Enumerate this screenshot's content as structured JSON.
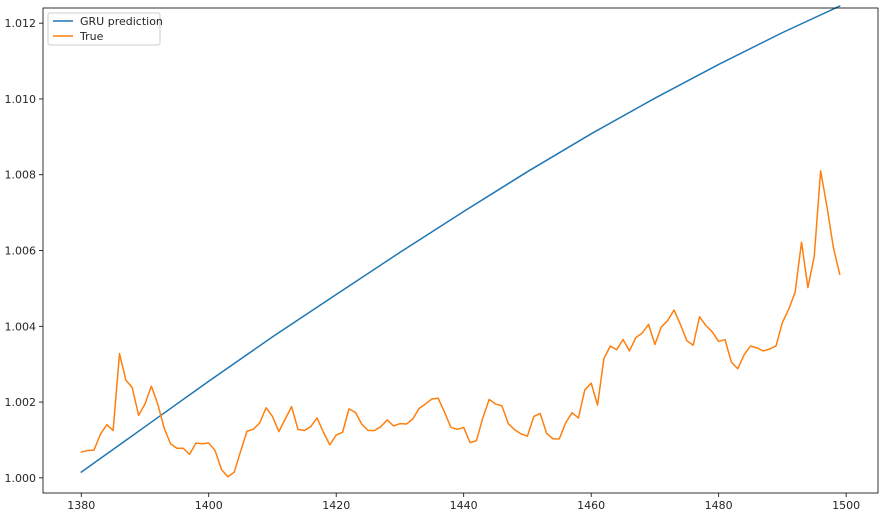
{
  "chart_data": {
    "type": "line",
    "title": "",
    "xlabel": "",
    "ylabel": "",
    "xlim": [
      1374,
      1505
    ],
    "ylim": [
      0.9996,
      1.0124
    ],
    "xticks": [
      1380,
      1400,
      1420,
      1440,
      1460,
      1480,
      1500
    ],
    "yticks": [
      1.0,
      1.002,
      1.004,
      1.006,
      1.008,
      1.01,
      1.012
    ],
    "xtick_labels": [
      "1380",
      "1400",
      "1420",
      "1440",
      "1460",
      "1480",
      "1500"
    ],
    "ytick_labels": [
      "1.000",
      "1.002",
      "1.004",
      "1.006",
      "1.008",
      "1.010",
      "1.012"
    ],
    "grid": false,
    "legend_position": "top-left",
    "series": [
      {
        "name": "GRU prediction",
        "color": "#1f77b4",
        "x": [
          1380,
          1390,
          1400,
          1410,
          1420,
          1430,
          1440,
          1450,
          1460,
          1470,
          1480,
          1490,
          1499
        ],
        "y": [
          1.00015,
          1.00135,
          1.00255,
          1.00372,
          1.00484,
          1.00595,
          1.00703,
          1.00808,
          1.00908,
          1.01002,
          1.01091,
          1.01175,
          1.01245
        ]
      },
      {
        "name": "True",
        "color": "#ff7f0e",
        "x": [
          1380,
          1381,
          1382,
          1383,
          1384,
          1385,
          1386,
          1387,
          1388,
          1389,
          1390,
          1391,
          1392,
          1393,
          1394,
          1395,
          1396,
          1397,
          1398,
          1399,
          1400,
          1401,
          1402,
          1403,
          1404,
          1405,
          1406,
          1407,
          1408,
          1409,
          1410,
          1411,
          1412,
          1413,
          1414,
          1415,
          1416,
          1417,
          1418,
          1419,
          1420,
          1421,
          1422,
          1423,
          1424,
          1425,
          1426,
          1427,
          1428,
          1429,
          1430,
          1431,
          1432,
          1433,
          1434,
          1435,
          1436,
          1437,
          1438,
          1439,
          1440,
          1441,
          1442,
          1443,
          1444,
          1445,
          1446,
          1447,
          1448,
          1449,
          1450,
          1451,
          1452,
          1453,
          1454,
          1455,
          1456,
          1457,
          1458,
          1459,
          1460,
          1461,
          1462,
          1463,
          1464,
          1465,
          1466,
          1467,
          1468,
          1469,
          1470,
          1471,
          1472,
          1473,
          1474,
          1475,
          1476,
          1477,
          1478,
          1479,
          1480,
          1481,
          1482,
          1483,
          1484,
          1485,
          1486,
          1487,
          1488,
          1489,
          1490,
          1491,
          1492,
          1493,
          1494,
          1495,
          1496,
          1497,
          1498,
          1499
        ],
        "y": [
          1.00068,
          1.00072,
          1.00073,
          1.00115,
          1.0014,
          1.00125,
          1.00328,
          1.00258,
          1.00238,
          1.00165,
          1.00195,
          1.00242,
          1.00195,
          1.00132,
          1.0009,
          1.00078,
          1.00078,
          1.00062,
          1.00092,
          1.0009,
          1.00092,
          1.00072,
          1.00022,
          1.00003,
          1.00015,
          1.0007,
          1.00123,
          1.00128,
          1.00145,
          1.00185,
          1.00162,
          1.00122,
          1.00155,
          1.00188,
          1.00128,
          1.00125,
          1.00135,
          1.00158,
          1.0012,
          1.00087,
          1.00113,
          1.0012,
          1.00182,
          1.00173,
          1.00142,
          1.00125,
          1.00125,
          1.00135,
          1.00153,
          1.00137,
          1.00143,
          1.00142,
          1.00155,
          1.00183,
          1.00195,
          1.00208,
          1.0021,
          1.00173,
          1.00133,
          1.00128,
          1.00133,
          1.00093,
          1.00098,
          1.00158,
          1.00207,
          1.00195,
          1.0019,
          1.00143,
          1.00127,
          1.00116,
          1.0011,
          1.00162,
          1.0017,
          1.00118,
          1.00103,
          1.00103,
          1.00145,
          1.00172,
          1.00158,
          1.00232,
          1.0025,
          1.00192,
          1.00315,
          1.00348,
          1.00338,
          1.00365,
          1.00335,
          1.0037,
          1.00382,
          1.00405,
          1.00352,
          1.00398,
          1.00415,
          1.00443,
          1.00405,
          1.00362,
          1.0035,
          1.00425,
          1.00402,
          1.00385,
          1.0036,
          1.00365,
          1.00305,
          1.00288,
          1.00325,
          1.00348,
          1.00343,
          1.00335,
          1.0034,
          1.00348,
          1.0041,
          1.00445,
          1.0049,
          1.00622,
          1.00502,
          1.00585,
          1.0081,
          1.00715,
          1.00608,
          1.00537
        ]
      }
    ]
  }
}
